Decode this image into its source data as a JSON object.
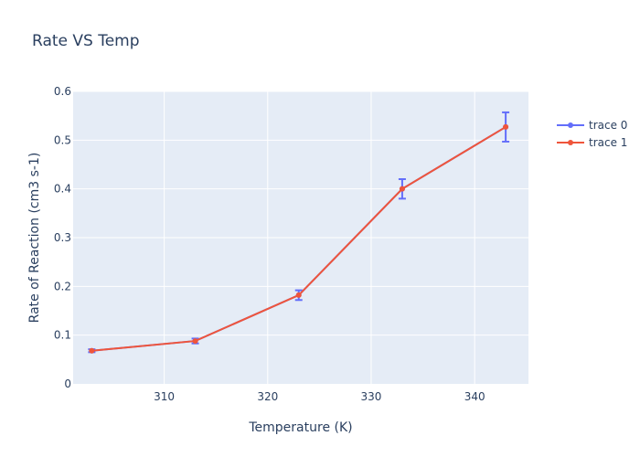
{
  "chart_data": {
    "type": "line",
    "title": "Rate VS Temp",
    "xlabel": "Temperature (K)",
    "ylabel": "Rate of Reaction (cm3 s-1)",
    "xlim": [
      301.2,
      345.2
    ],
    "ylim": [
      0,
      0.6
    ],
    "xticks": [
      310,
      320,
      330,
      340
    ],
    "yticks": [
      0,
      0.1,
      0.2,
      0.3,
      0.4,
      0.5,
      0.6
    ],
    "xtick_labels": [
      "310",
      "320",
      "330",
      "340"
    ],
    "ytick_labels": [
      "0",
      "0.1",
      "0.2",
      "0.3",
      "0.4",
      "0.5",
      "0.6"
    ],
    "grid": true,
    "legend": "right",
    "series": [
      {
        "name": "trace 0",
        "color": "#636efa",
        "x": [
          303,
          313,
          323,
          333,
          343
        ],
        "y": [
          0.068,
          0.088,
          0.182,
          0.4,
          0.527
        ],
        "error": [
          0.003,
          0.005,
          0.01,
          0.02,
          0.03
        ]
      },
      {
        "name": "trace 1",
        "color": "#ef553b",
        "x": [
          303,
          313,
          323,
          333,
          343
        ],
        "y": [
          0.068,
          0.088,
          0.182,
          0.4,
          0.527
        ]
      }
    ]
  }
}
